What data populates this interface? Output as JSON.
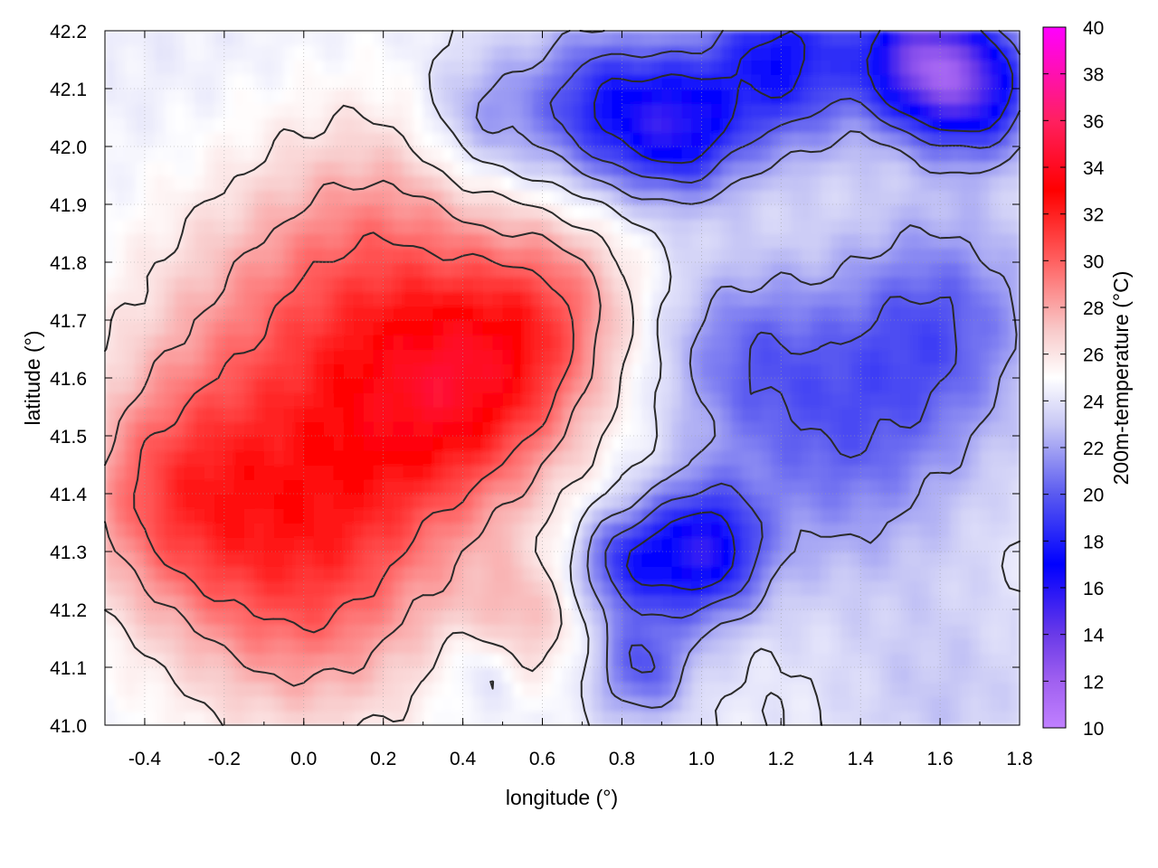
{
  "chart_data": {
    "type": "heatmap",
    "xlabel": "longitude (°)",
    "ylabel": "latitude (°)",
    "colorbar_label": "200m-temperature (°C)",
    "xlim": [
      -0.5,
      1.8
    ],
    "ylim": [
      41.0,
      42.2
    ],
    "x_ticks": [
      "-0.4",
      "-0.2",
      "0.0",
      "0.2",
      "0.4",
      "0.6",
      "0.8",
      "1.0",
      "1.2",
      "1.4",
      "1.6",
      "1.8"
    ],
    "x_tick_values": [
      -0.4,
      -0.2,
      0.0,
      0.2,
      0.4,
      0.6,
      0.8,
      1.0,
      1.2,
      1.4,
      1.6,
      1.8
    ],
    "y_ticks": [
      "41.0",
      "41.1",
      "41.2",
      "41.3",
      "41.4",
      "41.5",
      "41.6",
      "41.7",
      "41.8",
      "41.9",
      "42.0",
      "42.1",
      "42.2"
    ],
    "y_tick_values": [
      41.0,
      41.1,
      41.2,
      41.3,
      41.4,
      41.5,
      41.6,
      41.7,
      41.8,
      41.9,
      42.0,
      42.1,
      42.2
    ],
    "colorbar_range": [
      10,
      40
    ],
    "colorbar_ticks": [
      "10",
      "12",
      "14",
      "16",
      "18",
      "20",
      "22",
      "24",
      "26",
      "28",
      "30",
      "32",
      "34",
      "36",
      "38",
      "40"
    ],
    "colorbar_tick_values": [
      10,
      12,
      14,
      16,
      18,
      20,
      22,
      24,
      26,
      28,
      30,
      32,
      34,
      36,
      38,
      40
    ],
    "colormap": [
      {
        "value": 10,
        "color": "#c080ff"
      },
      {
        "value": 12,
        "color": "#a060f0"
      },
      {
        "value": 14,
        "color": "#6a3ae8"
      },
      {
        "value": 17,
        "color": "#0000ff"
      },
      {
        "value": 20,
        "color": "#5a5af0"
      },
      {
        "value": 23,
        "color": "#c8c8f5"
      },
      {
        "value": 25,
        "color": "#ffffff"
      },
      {
        "value": 27,
        "color": "#f8caca"
      },
      {
        "value": 30,
        "color": "#ff6060"
      },
      {
        "value": 33,
        "color": "#ff0000"
      },
      {
        "value": 36,
        "color": "#ff2060"
      },
      {
        "value": 40,
        "color": "#ff00ff"
      }
    ],
    "grid": true,
    "contours": true,
    "field_features": [
      {
        "lon": 0.0,
        "lat": 41.28,
        "temp": 30.5,
        "radius": 0.35
      },
      {
        "lon": 0.3,
        "lat": 41.55,
        "temp": 29.5,
        "radius": 0.3
      },
      {
        "lon": 0.5,
        "lat": 41.62,
        "temp": 29.0,
        "radius": 0.25
      },
      {
        "lon": -0.1,
        "lat": 41.65,
        "temp": 28.0,
        "radius": 0.35
      },
      {
        "lon": 0.2,
        "lat": 41.85,
        "temp": 27.5,
        "radius": 0.3
      },
      {
        "lon": 0.65,
        "lat": 41.75,
        "temp": 27.0,
        "radius": 0.2
      },
      {
        "lon": -0.35,
        "lat": 41.4,
        "temp": 28.5,
        "radius": 0.25
      },
      {
        "lon": 0.55,
        "lat": 41.18,
        "temp": 27.0,
        "radius": 0.15
      },
      {
        "lon": 1.0,
        "lat": 41.3,
        "temp": 16.5,
        "radius": 0.15
      },
      {
        "lon": 0.8,
        "lat": 41.28,
        "temp": 19.5,
        "radius": 0.12
      },
      {
        "lon": 1.35,
        "lat": 41.5,
        "temp": 20.5,
        "radius": 0.3
      },
      {
        "lon": 1.6,
        "lat": 41.7,
        "temp": 20.5,
        "radius": 0.25
      },
      {
        "lon": 1.1,
        "lat": 41.65,
        "temp": 21.5,
        "radius": 0.2
      },
      {
        "lon": 0.75,
        "lat": 42.07,
        "temp": 18.5,
        "radius": 0.18
      },
      {
        "lon": 0.95,
        "lat": 42.03,
        "temp": 18.0,
        "radius": 0.15
      },
      {
        "lon": 1.2,
        "lat": 42.15,
        "temp": 17.5,
        "radius": 0.2
      },
      {
        "lon": 1.55,
        "lat": 42.15,
        "temp": 15.0,
        "radius": 0.15
      },
      {
        "lon": 1.7,
        "lat": 42.1,
        "temp": 17.0,
        "radius": 0.15
      },
      {
        "lon": 0.45,
        "lat": 42.05,
        "temp": 21.5,
        "radius": 0.15
      },
      {
        "lon": 0.85,
        "lat": 41.1,
        "temp": 20.0,
        "radius": 0.12
      },
      {
        "lon": 1.6,
        "lat": 41.05,
        "temp": 23.0,
        "radius": 0.25
      },
      {
        "lon": 0.45,
        "lat": 41.1,
        "temp": 22.5,
        "radius": 0.1
      }
    ],
    "field_background_temp": 24.3
  }
}
